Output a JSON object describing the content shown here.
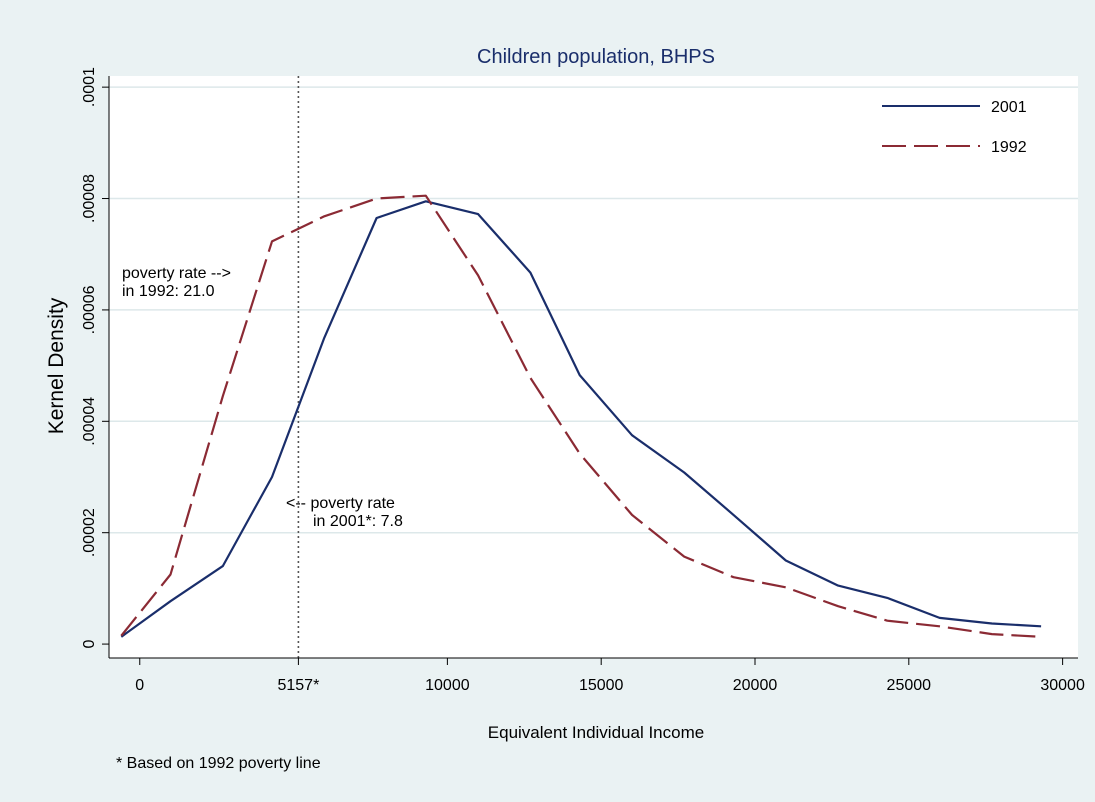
{
  "chart_data": {
    "type": "line",
    "title": "Children population, BHPS",
    "xlabel": "Equivalent Individual Income",
    "ylabel": "Kernel Density",
    "xlim": [
      -1000,
      30500
    ],
    "ylim": [
      -2.5e-06,
      0.000102
    ],
    "x_ticks": [
      {
        "value": 0,
        "label": "0"
      },
      {
        "value": 5157,
        "label": "5157*"
      },
      {
        "value": 10000,
        "label": "10000"
      },
      {
        "value": 15000,
        "label": "15000"
      },
      {
        "value": 20000,
        "label": "20000"
      },
      {
        "value": 25000,
        "label": "25000"
      },
      {
        "value": 30000,
        "label": "30000"
      }
    ],
    "y_ticks": [
      {
        "value": 0,
        "label": "0"
      },
      {
        "value": 2e-05,
        "label": ".00002"
      },
      {
        "value": 4e-05,
        "label": ".00004"
      },
      {
        "value": 6e-05,
        "label": ".00006"
      },
      {
        "value": 8e-05,
        "label": ".00008"
      },
      {
        "value": 0.0001,
        "label": ".0001"
      }
    ],
    "grid": true,
    "legend_position": "top-right",
    "reference_line": {
      "x": 5157,
      "style": "dotted",
      "color": "#555555"
    },
    "series": [
      {
        "name": "2001",
        "color": "#1a2e6b",
        "dash": "solid",
        "x": [
          -600,
          1000,
          2700,
          4300,
          6000,
          7700,
          9300,
          11000,
          12700,
          14300,
          16000,
          17700,
          19300,
          21000,
          22700,
          24300,
          26000,
          27700,
          29300
        ],
        "y": [
          1.3e-06,
          7.7e-06,
          1.4e-05,
          3e-05,
          5.5e-05,
          7.65e-05,
          7.95e-05,
          7.72e-05,
          6.67e-05,
          4.83e-05,
          3.75e-05,
          3.08e-05,
          2.32e-05,
          1.5e-05,
          1.05e-05,
          8.3e-06,
          4.7e-06,
          3.7e-06,
          3.2e-06
        ]
      },
      {
        "name": "1992",
        "color": "#8b2a34",
        "dash": "dashed",
        "x": [
          -600,
          1000,
          2700,
          4300,
          6000,
          7700,
          9300,
          11000,
          12700,
          14300,
          16000,
          17700,
          19300,
          21000,
          22700,
          24300,
          26000,
          27700,
          29300
        ],
        "y": [
          1.5e-06,
          1.25e-05,
          4.45e-05,
          7.23e-05,
          7.68e-05,
          8e-05,
          8.05e-05,
          6.62e-05,
          4.78e-05,
          3.42e-05,
          2.32e-05,
          1.57e-05,
          1.2e-05,
          1.02e-05,
          6.8e-06,
          4.2e-06,
          3.2e-06,
          1.8e-06,
          1.3e-06
        ]
      }
    ],
    "annotations": [
      {
        "line1": "poverty rate -->",
        "line2": "in 1992: 21.0"
      },
      {
        "line1": "<-- poverty rate",
        "line2": "in 2001*: 7.8"
      }
    ],
    "note": "* Based on 1992 poverty line"
  }
}
